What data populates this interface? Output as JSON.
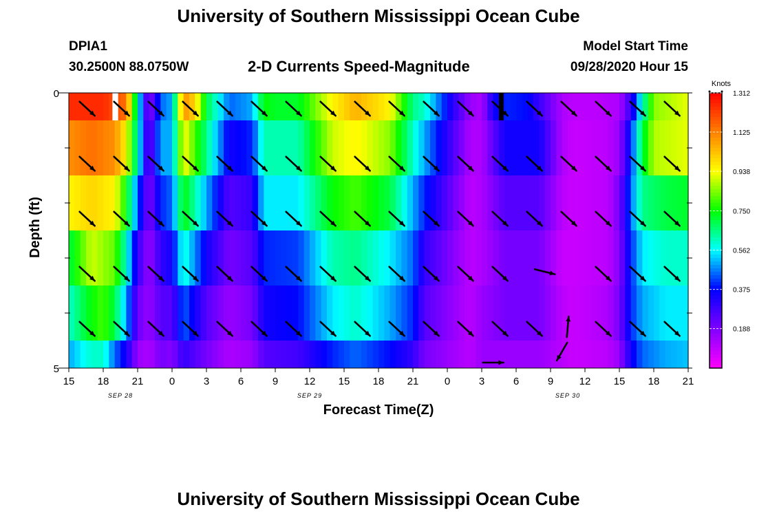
{
  "header": {
    "title": "University of Southern Mississippi Ocean Cube",
    "footer_title": "University of Southern Mississippi Ocean Cube",
    "station_id": "DPIA1",
    "coordinates": "30.2500N 88.0750W",
    "subtitle": "2-D Currents Speed-Magnitude",
    "model_label": "Model Start Time",
    "model_time": "09/28/2020 Hour 15"
  },
  "chart_data": {
    "type": "heatmap",
    "title": "2-D Currents Speed-Magnitude",
    "xlabel": "Forecast Time(Z)",
    "ylabel": "Depth (ft)",
    "x_tick_labels": [
      "15",
      "18",
      "21",
      "0",
      "3",
      "6",
      "9",
      "12",
      "15",
      "18",
      "21",
      "0",
      "3",
      "6",
      "9",
      "12",
      "15",
      "18",
      "21"
    ],
    "date_labels": [
      {
        "label": "SEP 28",
        "hour": 4.5
      },
      {
        "label": "SEP 29",
        "hour": 21
      },
      {
        "label": "SEP 30",
        "hour": 43.5
      }
    ],
    "y_tick_labels": [
      "0",
      "5"
    ],
    "ylim": [
      0,
      5
    ],
    "hours": [
      0,
      54
    ],
    "colorbar": {
      "unit": "Knots",
      "min": 0,
      "max": 1.312,
      "tick_labels": [
        "1.312",
        "1.125",
        "0.938",
        "0.750",
        "0.562",
        "0.375",
        "0.188"
      ],
      "tick_values": [
        1.312,
        1.125,
        0.938,
        0.75,
        0.562,
        0.375,
        0.188
      ],
      "colors": [
        "#ff00ff",
        "#7f00ff",
        "#0000ff",
        "#00ffff",
        "#00ff00",
        "#ffff00",
        "#ff8000",
        "#ff0000"
      ]
    },
    "layers": [
      {
        "depth": [
          0.0,
          0.5
        ],
        "speeds": [
          [
            0,
            1.25
          ],
          [
            3,
            1.25
          ],
          [
            5,
            1.15
          ],
          [
            6,
            0.6
          ],
          [
            7,
            0.15
          ],
          [
            8,
            0.45
          ],
          [
            9,
            0.5
          ],
          [
            10,
            1.1
          ],
          [
            11,
            1.0
          ],
          [
            12,
            0.7
          ],
          [
            14,
            0.45
          ],
          [
            16,
            0.5
          ],
          [
            17,
            0.75
          ],
          [
            18,
            0.72
          ],
          [
            20,
            0.72
          ],
          [
            23,
            0.95
          ],
          [
            25,
            1.05
          ],
          [
            28,
            0.95
          ],
          [
            30,
            0.65
          ],
          [
            31,
            0.6
          ],
          [
            35,
            0.15
          ],
          [
            36,
            0.12
          ],
          [
            37,
            0.35
          ],
          [
            38,
            0.4
          ],
          [
            40,
            0.38
          ],
          [
            43,
            0.12
          ],
          [
            44,
            0.1
          ],
          [
            46,
            0.1
          ],
          [
            48,
            0.12
          ],
          [
            49,
            0.3
          ],
          [
            50,
            0.6
          ],
          [
            51,
            0.85
          ],
          [
            54,
            0.92
          ]
        ]
      },
      {
        "depth": [
          0.5,
          1.5
        ],
        "speeds": [
          [
            0,
            1.1
          ],
          [
            2,
            1.15
          ],
          [
            4,
            1.1
          ],
          [
            5,
            0.95
          ],
          [
            6,
            0.6
          ],
          [
            7,
            0.2
          ],
          [
            8,
            0.5
          ],
          [
            9,
            0.5
          ],
          [
            10,
            0.95
          ],
          [
            12,
            0.65
          ],
          [
            14,
            0.35
          ],
          [
            16,
            0.4
          ],
          [
            17,
            0.62
          ],
          [
            20,
            0.62
          ],
          [
            23,
            0.9
          ],
          [
            25,
            0.95
          ],
          [
            28,
            0.85
          ],
          [
            30,
            0.6
          ],
          [
            31,
            0.5
          ],
          [
            35,
            0.12
          ],
          [
            36,
            0.12
          ],
          [
            38,
            0.35
          ],
          [
            41,
            0.35
          ],
          [
            43,
            0.12
          ],
          [
            44,
            0.08
          ],
          [
            47,
            0.1
          ],
          [
            48,
            0.15
          ],
          [
            49,
            0.4
          ],
          [
            50,
            0.7
          ],
          [
            51,
            0.88
          ],
          [
            54,
            0.92
          ]
        ]
      },
      {
        "depth": [
          1.5,
          2.5
        ],
        "speeds": [
          [
            0,
            0.95
          ],
          [
            2,
            1.0
          ],
          [
            4,
            0.95
          ],
          [
            5,
            0.75
          ],
          [
            6,
            0.45
          ],
          [
            7,
            0.18
          ],
          [
            8,
            0.4
          ],
          [
            9,
            0.45
          ],
          [
            10,
            0.75
          ],
          [
            12,
            0.5
          ],
          [
            14,
            0.25
          ],
          [
            16,
            0.3
          ],
          [
            17,
            0.55
          ],
          [
            20,
            0.55
          ],
          [
            23,
            0.75
          ],
          [
            25,
            0.8
          ],
          [
            28,
            0.7
          ],
          [
            30,
            0.5
          ],
          [
            31,
            0.4
          ],
          [
            35,
            0.1
          ],
          [
            36,
            0.12
          ],
          [
            38,
            0.25
          ],
          [
            41,
            0.25
          ],
          [
            43,
            0.1
          ],
          [
            44,
            0.08
          ],
          [
            47,
            0.1
          ],
          [
            48,
            0.2
          ],
          [
            49,
            0.45
          ],
          [
            50,
            0.65
          ],
          [
            52,
            0.7
          ],
          [
            54,
            0.72
          ]
        ]
      },
      {
        "depth": [
          2.5,
          3.5
        ],
        "speeds": [
          [
            0,
            0.7
          ],
          [
            2,
            0.9
          ],
          [
            4,
            0.82
          ],
          [
            5,
            0.6
          ],
          [
            6,
            0.3
          ],
          [
            7,
            0.15
          ],
          [
            8,
            0.3
          ],
          [
            9,
            0.35
          ],
          [
            10,
            0.6
          ],
          [
            12,
            0.35
          ],
          [
            14,
            0.2
          ],
          [
            16,
            0.25
          ],
          [
            17,
            0.4
          ],
          [
            20,
            0.42
          ],
          [
            23,
            0.62
          ],
          [
            25,
            0.65
          ],
          [
            28,
            0.55
          ],
          [
            30,
            0.45
          ],
          [
            31,
            0.3
          ],
          [
            35,
            0.1
          ],
          [
            36,
            0.12
          ],
          [
            38,
            0.2
          ],
          [
            41,
            0.2
          ],
          [
            43,
            0.08
          ],
          [
            44,
            0.08
          ],
          [
            47,
            0.1
          ],
          [
            48,
            0.18
          ],
          [
            49,
            0.4
          ],
          [
            50,
            0.55
          ],
          [
            52,
            0.6
          ],
          [
            54,
            0.6
          ]
        ]
      },
      {
        "depth": [
          3.5,
          4.5
        ],
        "speeds": [
          [
            0,
            0.6
          ],
          [
            2,
            0.75
          ],
          [
            3,
            0.8
          ],
          [
            4,
            0.7
          ],
          [
            5,
            0.5
          ],
          [
            6,
            0.22
          ],
          [
            7,
            0.15
          ],
          [
            8,
            0.25
          ],
          [
            9,
            0.25
          ],
          [
            10,
            0.45
          ],
          [
            12,
            0.25
          ],
          [
            14,
            0.15
          ],
          [
            16,
            0.2
          ],
          [
            17,
            0.35
          ],
          [
            20,
            0.38
          ],
          [
            23,
            0.55
          ],
          [
            25,
            0.6
          ],
          [
            28,
            0.5
          ],
          [
            30,
            0.4
          ],
          [
            31,
            0.25
          ],
          [
            35,
            0.1
          ],
          [
            36,
            0.15
          ],
          [
            38,
            0.2
          ],
          [
            41,
            0.2
          ],
          [
            43,
            0.1
          ],
          [
            44,
            0.08
          ],
          [
            47,
            0.12
          ],
          [
            48,
            0.2
          ],
          [
            49,
            0.4
          ],
          [
            50,
            0.5
          ],
          [
            52,
            0.55
          ],
          [
            54,
            0.55
          ]
        ]
      },
      {
        "depth": [
          4.5,
          5.0
        ],
        "speeds": [
          [
            0,
            0.5
          ],
          [
            2,
            0.6
          ],
          [
            3,
            0.6
          ],
          [
            4,
            0.45
          ],
          [
            5,
            0.35
          ],
          [
            6,
            0.15
          ],
          [
            7,
            0.12
          ],
          [
            8,
            0.2
          ],
          [
            9,
            0.18
          ],
          [
            10,
            0.3
          ],
          [
            12,
            0.2
          ],
          [
            14,
            0.12
          ],
          [
            16,
            0.15
          ],
          [
            17,
            0.25
          ],
          [
            20,
            0.28
          ],
          [
            23,
            0.4
          ],
          [
            25,
            0.45
          ],
          [
            28,
            0.38
          ],
          [
            30,
            0.3
          ],
          [
            31,
            0.2
          ],
          [
            35,
            0.1
          ],
          [
            36,
            0.15
          ],
          [
            38,
            0.15
          ],
          [
            41,
            0.15
          ],
          [
            43,
            0.1
          ],
          [
            44,
            0.08
          ],
          [
            47,
            0.1
          ],
          [
            48,
            0.15
          ],
          [
            49,
            0.35
          ],
          [
            50,
            0.45
          ],
          [
            52,
            0.5
          ],
          [
            54,
            0.52
          ]
        ]
      }
    ],
    "missing_columns": [
      {
        "hours": [
          3.8,
          4.3
        ],
        "depth": [
          0,
          0.5
        ],
        "color": "#ffffff"
      },
      {
        "hours": [
          37.5,
          37.9
        ],
        "depth": [
          0,
          0.5
        ],
        "color": "#000000"
      }
    ],
    "vector_hours": [
      1,
      4,
      7,
      10,
      13,
      16,
      19,
      22,
      25,
      28,
      31,
      34,
      37,
      40,
      43,
      46,
      49,
      52
    ],
    "vector_depths": [
      0.25,
      1.25,
      2.25,
      3.25,
      4.25
    ],
    "vector_angle_deg": 43,
    "vector_exceptions": [
      {
        "hour": 41.5,
        "depth": 3.25,
        "angle": 14
      },
      {
        "hour": 43.5,
        "depth": 4.25,
        "angle": -85
      },
      {
        "hour": 43.0,
        "depth": 4.7,
        "angle": 120
      },
      {
        "hour": 37.0,
        "depth": 4.9,
        "angle": 0
      }
    ],
    "grid": false,
    "legend": "right"
  }
}
